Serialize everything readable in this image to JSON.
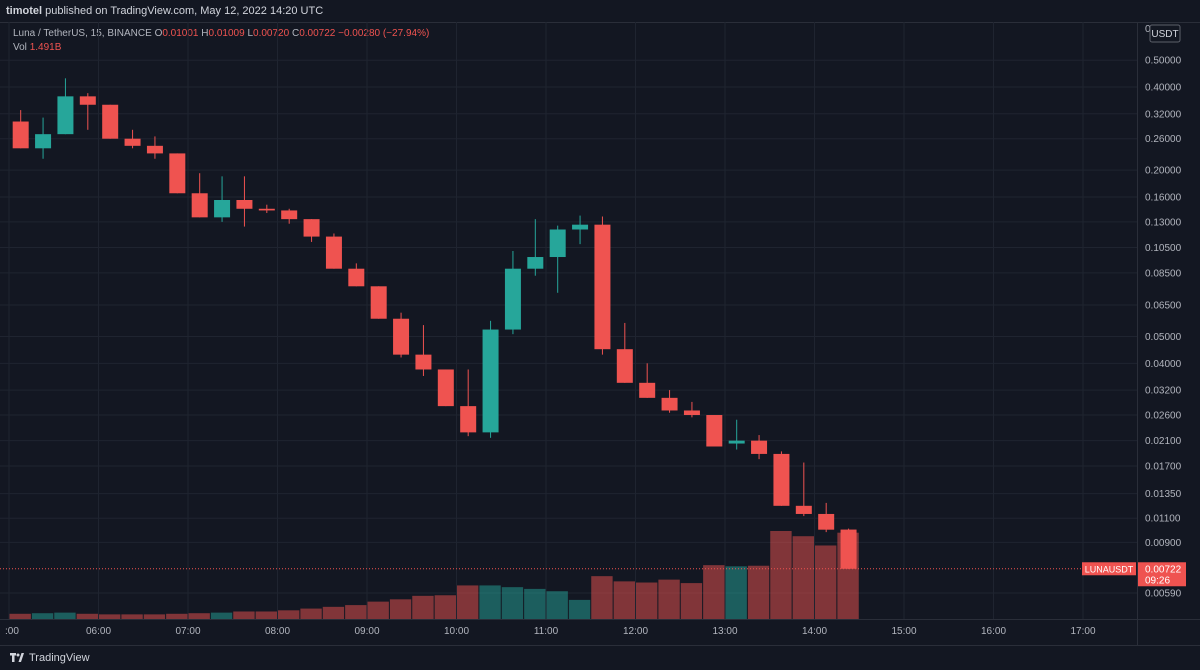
{
  "header": {
    "author": "timotel",
    "published": "published on TradingView.com, May 12, 2022 14:20 UTC"
  },
  "legend": {
    "symbol": "Luna / TetherUS, 15, BINANCE",
    "o_label": "O",
    "o_value": "0.01001",
    "h_label": "H",
    "h_value": "0.01009",
    "l_label": "L",
    "l_value": "0.00720",
    "c_label": "C",
    "c_value": "0.00722",
    "change": "−0.00280 (−27.94%)",
    "vol_label": "Vol",
    "vol_value": "1.491B"
  },
  "price_tag": {
    "symbol": "LUNAUSDT",
    "price": "0.00722",
    "countdown": "09:26"
  },
  "currency": "USDT",
  "footer": {
    "brand": "TradingView"
  },
  "colors": {
    "up": "#26a69a",
    "down": "#ef5350",
    "background": "#131722",
    "grid": "#1f2430"
  },
  "chart_data": {
    "type": "candlestick",
    "interval": "15",
    "scale": "log",
    "y_ticks": [
      0.5,
      0.4,
      0.32,
      0.26,
      0.2,
      0.16,
      0.13,
      0.105,
      0.085,
      0.065,
      0.05,
      0.04,
      0.032,
      0.026,
      0.021,
      0.017,
      0.0135,
      0.011,
      0.009,
      0.0059
    ],
    "y_tick_labels": [
      "0.50000",
      "0.40000",
      "0.32000",
      "0.26000",
      "0.20000",
      "0.16000",
      "0.13000",
      "0.10500",
      "0.08500",
      "0.06500",
      "0.05000",
      "0.04000",
      "0.03200",
      "0.02600",
      "0.02100",
      "0.01700",
      "0.01350",
      "0.01100",
      "0.00900",
      "0.00590"
    ],
    "y_top_label": "0",
    "x_labels": [
      ":00",
      "06:00",
      "07:00",
      "08:00",
      "09:00",
      "10:00",
      "11:00",
      "12:00",
      "13:00",
      "14:00",
      "15:00",
      "16:00",
      "17:00"
    ],
    "x_label_hours": [
      5,
      6,
      7,
      8,
      9,
      10,
      11,
      12,
      13,
      14,
      15,
      16,
      17
    ],
    "candles": [
      {
        "t": "05:00",
        "o": 0.3,
        "h": 0.33,
        "l": 0.24,
        "c": 0.24
      },
      {
        "t": "05:15",
        "o": 0.24,
        "h": 0.31,
        "l": 0.22,
        "c": 0.27
      },
      {
        "t": "05:30",
        "o": 0.27,
        "h": 0.43,
        "l": 0.27,
        "c": 0.37
      },
      {
        "t": "05:45",
        "o": 0.37,
        "h": 0.38,
        "l": 0.28,
        "c": 0.345
      },
      {
        "t": "06:00",
        "o": 0.345,
        "h": 0.345,
        "l": 0.26,
        "c": 0.26
      },
      {
        "t": "06:15",
        "o": 0.26,
        "h": 0.28,
        "l": 0.24,
        "c": 0.245
      },
      {
        "t": "06:30",
        "o": 0.245,
        "h": 0.265,
        "l": 0.22,
        "c": 0.23
      },
      {
        "t": "06:45",
        "o": 0.23,
        "h": 0.23,
        "l": 0.165,
        "c": 0.165
      },
      {
        "t": "07:00",
        "o": 0.165,
        "h": 0.195,
        "l": 0.135,
        "c": 0.135
      },
      {
        "t": "07:15",
        "o": 0.135,
        "h": 0.19,
        "l": 0.13,
        "c": 0.156
      },
      {
        "t": "07:30",
        "o": 0.156,
        "h": 0.19,
        "l": 0.125,
        "c": 0.145
      },
      {
        "t": "07:45",
        "o": 0.145,
        "h": 0.15,
        "l": 0.14,
        "c": 0.143
      },
      {
        "t": "08:00",
        "o": 0.143,
        "h": 0.145,
        "l": 0.128,
        "c": 0.133
      },
      {
        "t": "08:15",
        "o": 0.133,
        "h": 0.133,
        "l": 0.11,
        "c": 0.115
      },
      {
        "t": "08:30",
        "o": 0.115,
        "h": 0.118,
        "l": 0.088,
        "c": 0.088
      },
      {
        "t": "08:45",
        "o": 0.088,
        "h": 0.092,
        "l": 0.076,
        "c": 0.076
      },
      {
        "t": "09:00",
        "o": 0.076,
        "h": 0.076,
        "l": 0.058,
        "c": 0.058
      },
      {
        "t": "09:15",
        "o": 0.058,
        "h": 0.061,
        "l": 0.042,
        "c": 0.043
      },
      {
        "t": "09:30",
        "o": 0.043,
        "h": 0.055,
        "l": 0.036,
        "c": 0.038
      },
      {
        "t": "09:45",
        "o": 0.038,
        "h": 0.038,
        "l": 0.028,
        "c": 0.028
      },
      {
        "t": "10:00",
        "o": 0.028,
        "h": 0.038,
        "l": 0.0218,
        "c": 0.0225
      },
      {
        "t": "10:15",
        "o": 0.0225,
        "h": 0.057,
        "l": 0.0215,
        "c": 0.053
      },
      {
        "t": "10:30",
        "o": 0.053,
        "h": 0.102,
        "l": 0.051,
        "c": 0.088
      },
      {
        "t": "10:45",
        "o": 0.088,
        "h": 0.133,
        "l": 0.083,
        "c": 0.097
      },
      {
        "t": "11:00",
        "o": 0.097,
        "h": 0.126,
        "l": 0.072,
        "c": 0.122
      },
      {
        "t": "11:15",
        "o": 0.122,
        "h": 0.137,
        "l": 0.108,
        "c": 0.127
      },
      {
        "t": "11:30",
        "o": 0.127,
        "h": 0.136,
        "l": 0.043,
        "c": 0.045
      },
      {
        "t": "11:45",
        "o": 0.045,
        "h": 0.056,
        "l": 0.034,
        "c": 0.034
      },
      {
        "t": "12:00",
        "o": 0.034,
        "h": 0.04,
        "l": 0.03,
        "c": 0.03
      },
      {
        "t": "12:15",
        "o": 0.03,
        "h": 0.032,
        "l": 0.0265,
        "c": 0.027
      },
      {
        "t": "12:30",
        "o": 0.027,
        "h": 0.029,
        "l": 0.0255,
        "c": 0.026
      },
      {
        "t": "12:45",
        "o": 0.026,
        "h": 0.026,
        "l": 0.02,
        "c": 0.02
      },
      {
        "t": "13:00",
        "o": 0.0205,
        "h": 0.025,
        "l": 0.0195,
        "c": 0.021
      },
      {
        "t": "13:15",
        "o": 0.021,
        "h": 0.022,
        "l": 0.018,
        "c": 0.0188
      },
      {
        "t": "13:30",
        "o": 0.0188,
        "h": 0.0192,
        "l": 0.0122,
        "c": 0.0122
      },
      {
        "t": "13:45",
        "o": 0.0122,
        "h": 0.0175,
        "l": 0.0112,
        "c": 0.0114
      },
      {
        "t": "14:00",
        "o": 0.0114,
        "h": 0.0125,
        "l": 0.0098,
        "c": 0.01
      },
      {
        "t": "14:15",
        "o": 0.01001,
        "h": 0.01009,
        "l": 0.0072,
        "c": 0.00722
      }
    ],
    "volume_unit": "B",
    "volumes": [
      0.09,
      0.1,
      0.11,
      0.09,
      0.08,
      0.08,
      0.08,
      0.09,
      0.1,
      0.11,
      0.13,
      0.13,
      0.15,
      0.18,
      0.21,
      0.24,
      0.3,
      0.34,
      0.4,
      0.41,
      0.58,
      0.58,
      0.55,
      0.52,
      0.48,
      0.33,
      0.74,
      0.65,
      0.63,
      0.68,
      0.62,
      0.93,
      0.91,
      0.92,
      1.52,
      1.43,
      1.27,
      1.491
    ]
  }
}
